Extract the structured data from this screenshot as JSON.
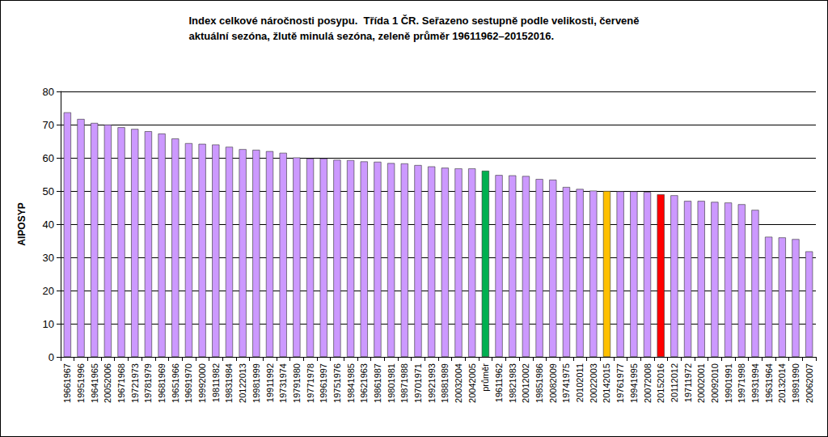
{
  "chart_data": {
    "type": "bar",
    "title": "Index celkové náročnosti posypu.  Třída 1 ČR. Seřazeno sestupně podle velikosti, červeně\naktuální sezóna, žlutě minulá sezóna, zeleně průměr 19611962–20152016.",
    "y_label": "AIPOSYP",
    "categories": [
      "19661967",
      "19951996",
      "19641965",
      "20052006",
      "19671968",
      "19721973",
      "19781979",
      "19681969",
      "19651966",
      "19691970",
      "19992000",
      "19811982",
      "19831984",
      "20122013",
      "19981999",
      "19911992",
      "19731974",
      "19791980",
      "19771978",
      "19961997",
      "19751976",
      "19841985",
      "19621963",
      "19861987",
      "19801981",
      "19871988",
      "19701971",
      "19921993",
      "19881989",
      "20032004",
      "20042005",
      "průměr",
      "19611962",
      "19821983",
      "20012002",
      "19851986",
      "20082009",
      "19741975",
      "20102011",
      "20022003",
      "20142015",
      "19761977",
      "19941995",
      "20072008",
      "20152016",
      "20112012",
      "19711972",
      "20002001",
      "20092010",
      "19901991",
      "19971998",
      "19931994",
      "19631964",
      "20132014",
      "19891990",
      "20062007"
    ],
    "values": [
      73.7,
      71.7,
      70.5,
      70.0,
      69.2,
      68.7,
      68.0,
      67.3,
      65.8,
      64.4,
      64.2,
      64.0,
      63.3,
      62.6,
      62.4,
      62.0,
      61.5,
      60.1,
      59.8,
      59.8,
      59.4,
      59.3,
      58.9,
      58.8,
      58.4,
      58.3,
      57.8,
      57.4,
      57.0,
      56.8,
      56.8,
      56.1,
      54.8,
      54.7,
      54.5,
      53.6,
      53.4,
      51.2,
      50.6,
      50.1,
      50.0,
      49.9,
      49.9,
      49.7,
      49.0,
      48.7,
      47.0,
      47.0,
      46.7,
      46.5,
      46.0,
      44.3,
      36.2,
      36.0,
      35.5,
      31.8
    ],
    "colors": [
      "#cc99ff",
      "#cc99ff",
      "#cc99ff",
      "#cc99ff",
      "#cc99ff",
      "#cc99ff",
      "#cc99ff",
      "#cc99ff",
      "#cc99ff",
      "#cc99ff",
      "#cc99ff",
      "#cc99ff",
      "#cc99ff",
      "#cc99ff",
      "#cc99ff",
      "#cc99ff",
      "#cc99ff",
      "#cc99ff",
      "#cc99ff",
      "#cc99ff",
      "#cc99ff",
      "#cc99ff",
      "#cc99ff",
      "#cc99ff",
      "#cc99ff",
      "#cc99ff",
      "#cc99ff",
      "#cc99ff",
      "#cc99ff",
      "#cc99ff",
      "#cc99ff",
      "#00b050",
      "#cc99ff",
      "#cc99ff",
      "#cc99ff",
      "#cc99ff",
      "#cc99ff",
      "#cc99ff",
      "#cc99ff",
      "#cc99ff",
      "#ffc000",
      "#cc99ff",
      "#cc99ff",
      "#cc99ff",
      "#ff0000",
      "#cc99ff",
      "#cc99ff",
      "#cc99ff",
      "#cc99ff",
      "#cc99ff",
      "#cc99ff",
      "#cc99ff",
      "#cc99ff",
      "#cc99ff",
      "#cc99ff",
      "#cc99ff"
    ],
    "ylim": [
      0,
      80
    ],
    "yticks": [
      0,
      10,
      20,
      30,
      40,
      50,
      60,
      70,
      80
    ],
    "grid": true
  }
}
